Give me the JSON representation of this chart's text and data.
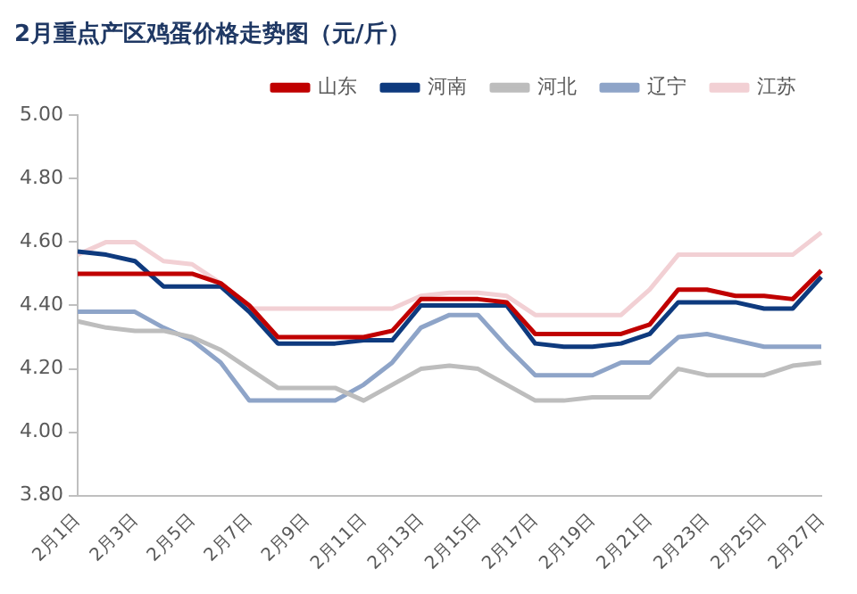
{
  "chart_data": {
    "type": "line",
    "title": "2月重点产区鸡蛋价格走势图（元/斤）",
    "categories": [
      "2月1日",
      null,
      "2月3日",
      null,
      "2月5日",
      null,
      "2月7日",
      null,
      "2月9日",
      null,
      "2月11日",
      null,
      "2月13日",
      null,
      "2月15日",
      null,
      "2月17日",
      null,
      "2月19日",
      null,
      "2月21日",
      null,
      "2月23日",
      null,
      "2月25日",
      null,
      "2月27日"
    ],
    "series": [
      {
        "name": "山东",
        "color": "#c00000",
        "values": [
          4.5,
          4.5,
          4.5,
          4.5,
          4.5,
          4.47,
          4.4,
          4.3,
          4.3,
          4.3,
          4.3,
          4.32,
          4.42,
          4.42,
          4.42,
          4.41,
          4.31,
          4.31,
          4.31,
          4.31,
          4.34,
          4.45,
          4.45,
          4.43,
          4.43,
          4.42,
          4.51
        ]
      },
      {
        "name": "河南",
        "color": "#0e3a7e",
        "values": [
          4.57,
          4.56,
          4.54,
          4.46,
          4.46,
          4.46,
          4.38,
          4.28,
          4.28,
          4.28,
          4.29,
          4.29,
          4.4,
          4.4,
          4.4,
          4.4,
          4.28,
          4.27,
          4.27,
          4.28,
          4.31,
          4.41,
          4.41,
          4.41,
          4.39,
          4.39,
          4.49
        ]
      },
      {
        "name": "河北",
        "color": "#bdbdbd",
        "values": [
          4.35,
          4.33,
          4.32,
          4.32,
          4.3,
          4.26,
          4.2,
          4.14,
          4.14,
          4.14,
          4.1,
          4.15,
          4.2,
          4.21,
          4.2,
          4.15,
          4.1,
          4.1,
          4.11,
          4.11,
          4.11,
          4.2,
          4.18,
          4.18,
          4.18,
          4.21,
          4.22
        ]
      },
      {
        "name": "辽宁",
        "color": "#8ea4c8",
        "values": [
          4.38,
          4.38,
          4.38,
          4.33,
          4.29,
          4.22,
          4.1,
          4.1,
          4.1,
          4.1,
          4.15,
          4.22,
          4.33,
          4.37,
          4.37,
          4.27,
          4.18,
          4.18,
          4.18,
          4.22,
          4.22,
          4.3,
          4.31,
          4.29,
          4.27,
          4.27,
          4.27
        ]
      },
      {
        "name": "江苏",
        "color": "#f2d0d4",
        "values": [
          4.56,
          4.6,
          4.6,
          4.54,
          4.53,
          4.47,
          4.39,
          4.39,
          4.39,
          4.39,
          4.39,
          4.39,
          4.43,
          4.44,
          4.44,
          4.43,
          4.37,
          4.37,
          4.37,
          4.37,
          4.45,
          4.56,
          4.56,
          4.56,
          4.56,
          4.56,
          4.63
        ]
      }
    ],
    "ylim": [
      3.8,
      5.0
    ],
    "yticks": [
      {
        "value": 3.8,
        "label": "3.80"
      },
      {
        "value": 4.0,
        "label": "4.00"
      },
      {
        "value": 4.2,
        "label": "4.20"
      },
      {
        "value": 4.4,
        "label": "4.40"
      },
      {
        "value": 4.6,
        "label": "4.60"
      },
      {
        "value": 4.8,
        "label": "4.80"
      },
      {
        "value": 5.0,
        "label": "5.00"
      }
    ],
    "grid": false,
    "legend": "top",
    "marker": "none",
    "line_style": "solid"
  }
}
